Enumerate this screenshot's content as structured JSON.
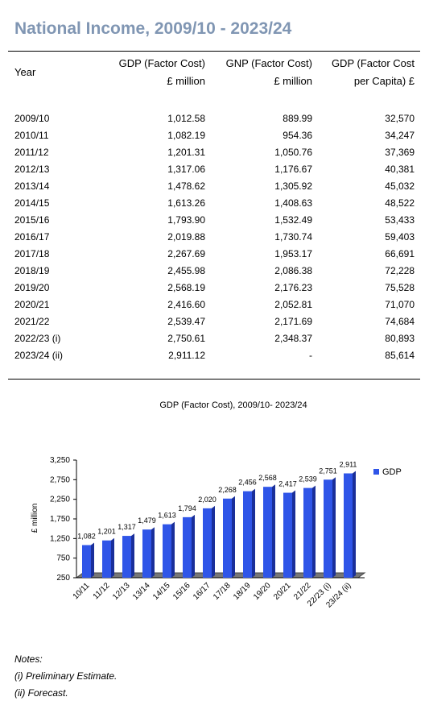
{
  "title": "National Income, 2009/10 - 2023/24",
  "table": {
    "headers": [
      [
        "Year"
      ],
      [
        "GDP (Factor Cost)",
        "£ million"
      ],
      [
        "GNP (Factor Cost)",
        "£ million"
      ],
      [
        "GDP (Factor Cost",
        "per Capita)  £"
      ]
    ],
    "rows": [
      [
        "2009/10",
        "1,012.58",
        "889.99",
        "32,570"
      ],
      [
        "2010/11",
        "1,082.19",
        "954.36",
        "34,247"
      ],
      [
        "2011/12",
        "1,201.31",
        "1,050.76",
        "37,369"
      ],
      [
        "2012/13",
        "1,317.06",
        "1,176.67",
        "40,381"
      ],
      [
        "2013/14",
        "1,478.62",
        "1,305.92",
        "45,032"
      ],
      [
        "2014/15",
        "1,613.26",
        "1,408.63",
        "48,522"
      ],
      [
        "2015/16",
        "1,793.90",
        "1,532.49",
        "53,433"
      ],
      [
        "2016/17",
        "2,019.88",
        "1,730.74",
        "59,403"
      ],
      [
        "2017/18",
        "2,267.69",
        "1,953.17",
        "66,691"
      ],
      [
        "2018/19",
        "2,455.98",
        "2,086.38",
        "72,228"
      ],
      [
        "2019/20",
        "2,568.19",
        "2,176.23",
        "75,528"
      ],
      [
        "2020/21",
        "2,416.60",
        "2,052.81",
        "71,070"
      ],
      [
        "2021/22",
        "2,539.47",
        "2,171.69",
        "74,684"
      ],
      [
        "2022/23 (i)",
        "2,750.61",
        "2,348.37",
        "80,893"
      ],
      [
        "2023/24 (ii)",
        "2,911.12",
        "-",
        "85,614"
      ]
    ]
  },
  "chart_data": {
    "type": "bar",
    "title": "GDP (Factor Cost), 2009/10- 2023/24",
    "ylabel": "£ million",
    "categories": [
      "10/11",
      "11/12",
      "12/13",
      "13/14",
      "14/15",
      "15/16",
      "16/17",
      "17/18",
      "18/19",
      "19/20",
      "20/21",
      "21/22",
      "22/23 (i)",
      "23/24 (ii)"
    ],
    "series": [
      {
        "name": "GDP",
        "color": "#2f55e8",
        "values": [
          1082,
          1201,
          1317,
          1479,
          1613,
          1794,
          2020,
          2268,
          2456,
          2568,
          2417,
          2539,
          2751,
          2911
        ],
        "value_labels": [
          "1,082",
          "1,201",
          "1,317",
          "1,479",
          "1,613",
          "1,794",
          "2,020",
          "2,268",
          "2,456",
          "2,568",
          "2,417",
          "2,539",
          "2,751",
          "2,911"
        ]
      }
    ],
    "ylim": [
      250,
      3250
    ],
    "yticks": [
      250,
      750,
      {
        "value": 1250,
        "label": "1,250"
      },
      {
        "value": 1750,
        "label": "1,750"
      },
      {
        "value": 2250,
        "label": "2,250"
      },
      {
        "value": 2750,
        "label": "2,750"
      },
      {
        "value": 3250,
        "label": "3,250"
      }
    ],
    "legend": "right"
  },
  "notes": [
    "Notes:",
    "(i) Preliminary Estimate.",
    "(ii) Forecast."
  ]
}
